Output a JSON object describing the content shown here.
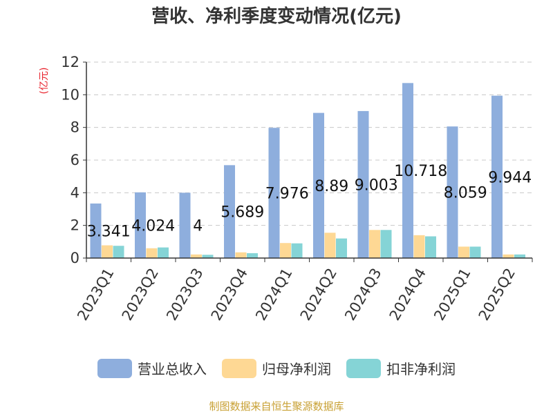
{
  "chart_data": {
    "type": "bar",
    "title": "营收、净利季度变动情况(亿元)",
    "ylabel": "(亿元)",
    "ylim": [
      0,
      12
    ],
    "yticks": [
      0,
      2,
      4,
      6,
      8,
      10,
      12
    ],
    "grid": true,
    "categories": [
      "2023Q1",
      "2023Q2",
      "2023Q3",
      "2023Q4",
      "2024Q1",
      "2024Q2",
      "2024Q3",
      "2024Q4",
      "2025Q1",
      "2025Q2"
    ],
    "series": [
      {
        "name": "营业总收入",
        "color": "#8eaedd",
        "values": [
          3.341,
          4.024,
          4,
          5.689,
          7.976,
          8.89,
          9.003,
          10.718,
          8.059,
          9.944
        ]
      },
      {
        "name": "归母净利润",
        "color": "#fed894",
        "values": [
          0.78,
          0.6,
          0.22,
          0.35,
          0.92,
          1.55,
          1.72,
          1.4,
          0.7,
          0.22
        ]
      },
      {
        "name": "扣非净利润",
        "color": "#85d4d6",
        "values": [
          0.75,
          0.65,
          0.2,
          0.3,
          0.9,
          1.2,
          1.72,
          1.33,
          0.7,
          0.22
        ]
      }
    ],
    "data_labels": [
      "3.341",
      "4.024",
      "4",
      "5.689",
      "7.976",
      "8.89",
      "9.003",
      "10.718",
      "8.059",
      "9.944"
    ],
    "legend_position": "bottom"
  },
  "source_text": "制图数据来自恒生聚源数据库"
}
